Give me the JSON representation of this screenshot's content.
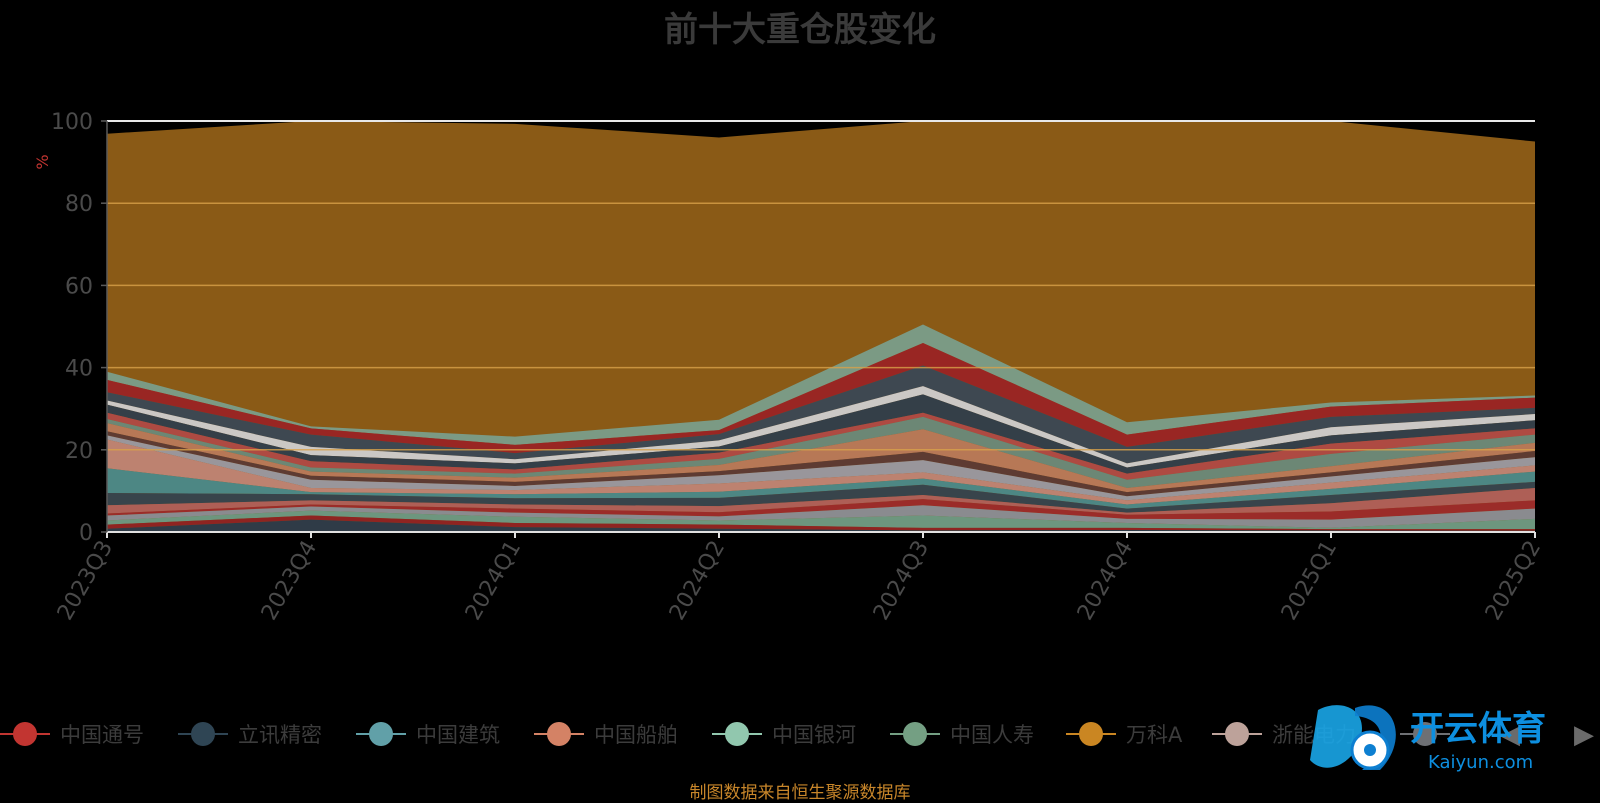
{
  "title": "前十大重仓股变化",
  "footnote": "制图数据来自恒生聚源数据库",
  "watermark": {
    "brand_cn": "开云体育",
    "brand_en": "Kaiyun.com"
  },
  "legend_nav": {
    "prev": "◀",
    "next": "▶"
  },
  "chart_data": {
    "type": "area",
    "stacked": true,
    "x": [
      "2023Q3",
      "2023Q4",
      "2024Q1",
      "2024Q2",
      "2024Q3",
      "2024Q4",
      "2025Q1",
      "2025Q2"
    ],
    "ylabel": "%",
    "ylim": [
      0,
      100
    ],
    "yticks": [
      0,
      20,
      40,
      60,
      80,
      100
    ],
    "grid": true,
    "legend_position": "bottom",
    "background_color": "#000000",
    "top_fill_color": "#8a5a16",
    "layers": [
      {
        "color": "#2a3a4a",
        "values": [
          0.8,
          3.0,
          1.2,
          0.8,
          0.4,
          0.5,
          0.4,
          0.3
        ]
      },
      {
        "color": "#8f2222",
        "values": [
          1.0,
          1.0,
          1.0,
          1.0,
          0.6,
          0.5,
          0.3,
          0.4
        ]
      },
      {
        "color": "#6c9a84",
        "values": [
          1.0,
          1.2,
          1.5,
          1.0,
          3.0,
          1.2,
          0.3,
          2.5
        ]
      },
      {
        "color": "#8a8e96",
        "values": [
          1.2,
          1.0,
          1.0,
          1.0,
          2.5,
          1.0,
          2.0,
          2.5
        ]
      },
      {
        "color": "#9c2a2a",
        "values": [
          0.5,
          0.5,
          1.0,
          1.0,
          1.5,
          1.0,
          2.0,
          2.0
        ]
      },
      {
        "color": "#b0605a",
        "values": [
          2.0,
          1.0,
          1.0,
          1.5,
          1.0,
          0.5,
          2.0,
          3.0
        ]
      },
      {
        "color": "#34434e",
        "values": [
          3.0,
          1.5,
          1.5,
          2.0,
          2.5,
          1.0,
          2.0,
          1.5
        ]
      },
      {
        "color": "#4a8a8a",
        "values": [
          6.0,
          0.5,
          1.0,
          1.5,
          1.5,
          1.0,
          1.5,
          2.5
        ]
      },
      {
        "color": "#c08575",
        "values": [
          7.0,
          1.0,
          1.0,
          2.0,
          1.5,
          1.0,
          1.5,
          1.5
        ]
      },
      {
        "color": "#9a9aa2",
        "values": [
          1.0,
          2.0,
          1.0,
          2.0,
          3.0,
          1.0,
          1.5,
          2.0
        ]
      },
      {
        "color": "#5c3a34",
        "values": [
          1.0,
          1.0,
          1.0,
          1.0,
          2.0,
          1.0,
          1.0,
          1.5
        ]
      },
      {
        "color": "#b97a5a",
        "values": [
          2.0,
          1.0,
          1.0,
          1.5,
          5.5,
          1.0,
          1.5,
          2.0
        ]
      },
      {
        "color": "#6a8a7a",
        "values": [
          1.0,
          1.0,
          1.0,
          1.5,
          3.0,
          2.0,
          3.0,
          2.0
        ]
      },
      {
        "color": "#b04a44",
        "values": [
          1.5,
          1.5,
          1.0,
          1.5,
          1.0,
          1.5,
          2.5,
          1.5
        ]
      },
      {
        "color": "#2f3e4b",
        "values": [
          2.0,
          1.5,
          1.5,
          1.5,
          4.5,
          1.5,
          2.0,
          2.0
        ]
      },
      {
        "color": "#cfcfcf",
        "values": [
          1.0,
          2.0,
          1.0,
          1.5,
          2.0,
          1.0,
          2.0,
          1.5
        ]
      },
      {
        "color": "#3a4854",
        "values": [
          2.0,
          3.0,
          1.5,
          1.5,
          5.0,
          4.0,
          2.5,
          1.5
        ]
      },
      {
        "color": "#9a2424",
        "values": [
          3.0,
          1.5,
          2.0,
          1.0,
          5.5,
          3.0,
          2.5,
          2.5
        ]
      },
      {
        "color": "#7a9e8a",
        "values": [
          2.0,
          0.5,
          2.0,
          2.5,
          4.5,
          3.0,
          1.0,
          0.5
        ]
      }
    ],
    "total_values": [
      96.9,
      100,
      99.3,
      96.0,
      100,
      100,
      100,
      95.0
    ]
  },
  "legend": [
    {
      "label": "中国通号",
      "color": "#c23531"
    },
    {
      "label": "立讯精密",
      "color": "#2f4554"
    },
    {
      "label": "中国建筑",
      "color": "#61a0a8"
    },
    {
      "label": "中国船舶",
      "color": "#d48265"
    },
    {
      "label": "中国银河",
      "color": "#91c7ae"
    },
    {
      "label": "中国人寿",
      "color": "#749f83"
    },
    {
      "label": "万科A",
      "color": "#ca8622"
    },
    {
      "label": "浙能电力",
      "color": "#bda29a"
    },
    {
      "label": "",
      "color": "#6e7074"
    }
  ]
}
